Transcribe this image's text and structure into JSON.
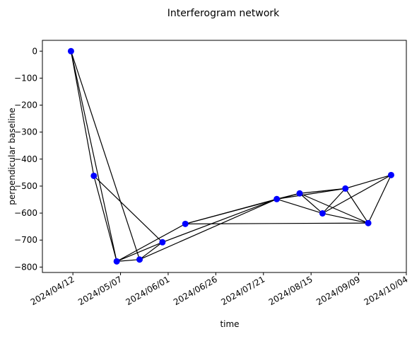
{
  "chart_data": {
    "type": "network",
    "title": "Interferogram network",
    "x_label": "time",
    "y_label": "perpendicular baseline",
    "x": [
      "2024/04/11",
      "2024/04/23",
      "2024/05/05",
      "2024/05/17",
      "2024/05/29",
      "2024/06/10",
      "2024/07/28",
      "2024/08/09",
      "2024/08/21",
      "2024/09/02",
      "2024/09/14",
      "2024/09/26"
    ],
    "values": [
      0,
      -462,
      -779,
      -772,
      -708,
      -640,
      -548,
      -527,
      -601,
      -509,
      -637,
      -459
    ],
    "edges": [
      [
        0,
        1
      ],
      [
        0,
        2
      ],
      [
        0,
        3
      ],
      [
        1,
        2
      ],
      [
        1,
        4
      ],
      [
        2,
        3
      ],
      [
        2,
        4
      ],
      [
        2,
        5
      ],
      [
        3,
        4
      ],
      [
        3,
        6
      ],
      [
        4,
        6
      ],
      [
        5,
        6
      ],
      [
        5,
        7
      ],
      [
        5,
        10
      ],
      [
        6,
        7
      ],
      [
        6,
        8
      ],
      [
        6,
        9
      ],
      [
        7,
        8
      ],
      [
        7,
        9
      ],
      [
        7,
        10
      ],
      [
        8,
        9
      ],
      [
        8,
        10
      ],
      [
        8,
        11
      ],
      [
        9,
        10
      ],
      [
        9,
        11
      ],
      [
        10,
        11
      ]
    ],
    "point_color": "#0000ff",
    "edge_color": "#000000",
    "xlim": [
      "2024/03/27",
      "2024/10/04"
    ],
    "xticks": [
      "2024/04/12",
      "2024/05/07",
      "2024/06/01",
      "2024/06/26",
      "2024/07/21",
      "2024/08/15",
      "2024/09/09",
      "2024/10/04"
    ],
    "ylim": [
      -820,
      40
    ],
    "yticks": [
      0,
      {
        "value": -100,
        "label": "−100"
      },
      {
        "value": -200,
        "label": "−200"
      },
      {
        "value": -300,
        "label": "−300"
      },
      {
        "value": -400,
        "label": "−400"
      },
      {
        "value": -500,
        "label": "−500"
      },
      {
        "value": -600,
        "label": "−600"
      },
      {
        "value": -700,
        "label": "−700"
      },
      {
        "value": -800,
        "label": "−800"
      }
    ]
  }
}
